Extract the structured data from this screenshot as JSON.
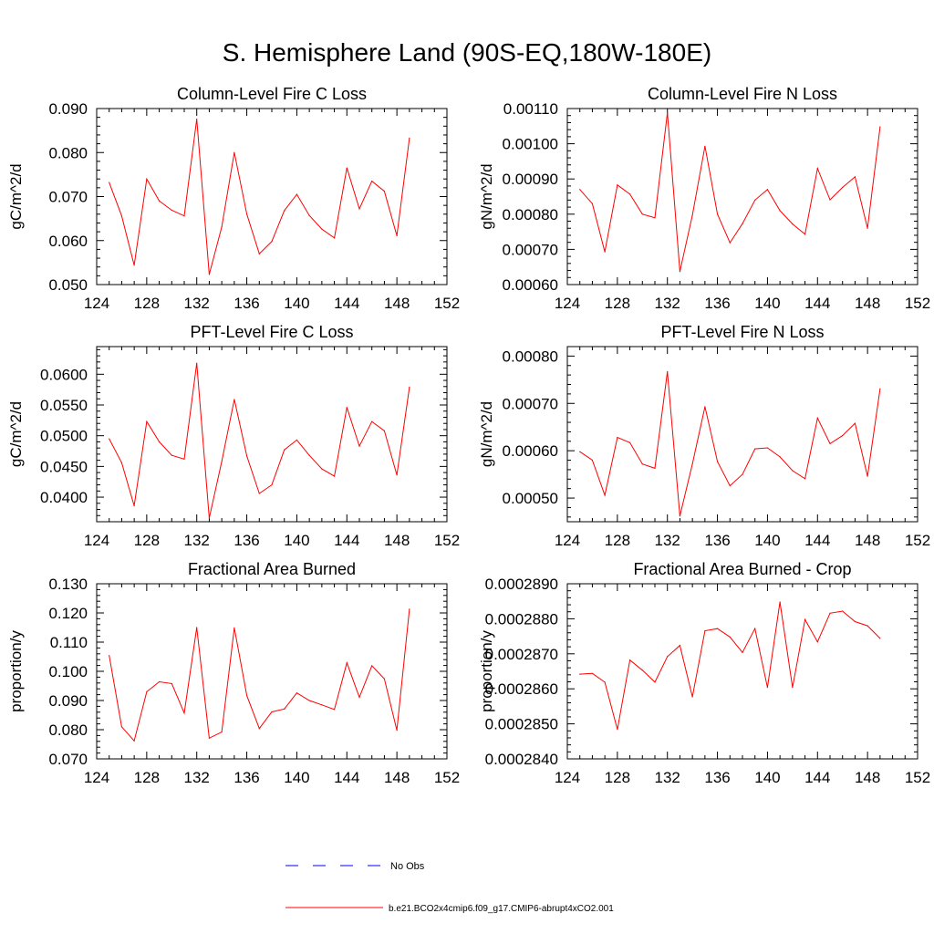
{
  "title": "S. Hemisphere Land (90S-EQ,180W-180E)",
  "colors": {
    "model": "#ff0000",
    "obs": "#0000ff",
    "axis": "#000000"
  },
  "legend": {
    "obs_label": "No Obs",
    "model_label": "b.e21.BCO2x4cmip6.f09_g17.CMIP6-abrupt4xCO2.001"
  },
  "chart_data": [
    {
      "type": "line",
      "title": "Column-Level Fire C Loss",
      "xlabel": "",
      "ylabel": "gC/m^2/d",
      "xlim": [
        124,
        152
      ],
      "ylim": [
        0.05,
        0.09
      ],
      "xticks": [
        "124",
        "128",
        "132",
        "136",
        "140",
        "144",
        "148",
        "152"
      ],
      "yticks": [
        "0.050",
        "0.060",
        "0.070",
        "0.080",
        "0.090"
      ],
      "x": [
        125,
        126,
        127,
        128,
        129,
        130,
        131,
        132,
        133,
        134,
        135,
        136,
        137,
        138,
        139,
        140,
        141,
        142,
        143,
        144,
        145,
        146,
        147,
        148,
        149
      ],
      "series": [
        {
          "name": "b.e21.BCO2x4cmip6.f09_g17.CMIP6-abrupt4xCO2.001",
          "values": [
            0.0732,
            0.0656,
            0.0544,
            0.074,
            0.069,
            0.0669,
            0.0656,
            0.0876,
            0.0523,
            0.0631,
            0.08,
            0.066,
            0.057,
            0.0598,
            0.0668,
            0.0705,
            0.0657,
            0.0626,
            0.0606,
            0.0765,
            0.0672,
            0.0735,
            0.0712,
            0.0611,
            0.0833
          ]
        }
      ]
    },
    {
      "type": "line",
      "title": "Column-Level Fire N Loss",
      "xlabel": "",
      "ylabel": "gN/m^2/d",
      "xlim": [
        124,
        152
      ],
      "ylim": [
        0.0006,
        0.0011
      ],
      "xticks": [
        "124",
        "128",
        "132",
        "136",
        "140",
        "144",
        "148",
        "152"
      ],
      "yticks": [
        "0.00060",
        "0.00070",
        "0.00080",
        "0.00090",
        "0.00100",
        "0.00110"
      ],
      "x": [
        125,
        126,
        127,
        128,
        129,
        130,
        131,
        132,
        133,
        134,
        135,
        136,
        137,
        138,
        139,
        140,
        141,
        142,
        143,
        144,
        145,
        146,
        147,
        148,
        149
      ],
      "series": [
        {
          "name": "b.e21.BCO2x4cmip6.f09_g17.CMIP6-abrupt4xCO2.001",
          "values": [
            0.00087,
            0.00083,
            0.000693,
            0.000883,
            0.000857,
            0.0008,
            0.00079,
            0.001088,
            0.000637,
            0.000797,
            0.000993,
            0.0008,
            0.000719,
            0.000773,
            0.00084,
            0.00087,
            0.00081,
            0.000772,
            0.000743,
            0.00093,
            0.000841,
            0.000876,
            0.000906,
            0.00076,
            0.001048
          ]
        }
      ]
    },
    {
      "type": "line",
      "title": "PFT-Level Fire C Loss",
      "xlabel": "",
      "ylabel": "gC/m^2/d",
      "xlim": [
        124,
        152
      ],
      "ylim": [
        0.036,
        0.0645
      ],
      "xticks": [
        "124",
        "128",
        "132",
        "136",
        "140",
        "144",
        "148",
        "152"
      ],
      "yticks": [
        "0.0400",
        "0.0450",
        "0.0500",
        "0.0550",
        "0.0600"
      ],
      "x": [
        125,
        126,
        127,
        128,
        129,
        130,
        131,
        132,
        133,
        134,
        135,
        136,
        137,
        138,
        139,
        140,
        141,
        142,
        143,
        144,
        145,
        146,
        147,
        148,
        149
      ],
      "series": [
        {
          "name": "b.e21.BCO2x4cmip6.f09_g17.CMIP6-abrupt4xCO2.001",
          "values": [
            0.0495,
            0.0456,
            0.0386,
            0.0523,
            0.049,
            0.0468,
            0.0462,
            0.0618,
            0.0366,
            0.0458,
            0.0559,
            0.0467,
            0.0406,
            0.042,
            0.0477,
            0.0493,
            0.0468,
            0.0446,
            0.0434,
            0.0546,
            0.0483,
            0.0523,
            0.0508,
            0.0436,
            0.0579
          ]
        }
      ]
    },
    {
      "type": "line",
      "title": "PFT-Level Fire N Loss",
      "xlabel": "",
      "ylabel": "gN/m^2/d",
      "xlim": [
        124,
        152
      ],
      "ylim": [
        0.00045,
        0.00082
      ],
      "xticks": [
        "124",
        "128",
        "132",
        "136",
        "140",
        "144",
        "148",
        "152"
      ],
      "yticks": [
        "0.00050",
        "0.00060",
        "0.00070",
        "0.00080"
      ],
      "x": [
        125,
        126,
        127,
        128,
        129,
        130,
        131,
        132,
        133,
        134,
        135,
        136,
        137,
        138,
        139,
        140,
        141,
        142,
        143,
        144,
        145,
        146,
        147,
        148,
        149
      ],
      "series": [
        {
          "name": "b.e21.BCO2x4cmip6.f09_g17.CMIP6-abrupt4xCO2.001",
          "values": [
            0.000598,
            0.00058,
            0.000506,
            0.000628,
            0.000617,
            0.000572,
            0.000563,
            0.000767,
            0.000462,
            0.000572,
            0.000693,
            0.000577,
            0.000526,
            0.00055,
            0.000604,
            0.000606,
            0.000587,
            0.000558,
            0.000541,
            0.000669,
            0.000615,
            0.000632,
            0.000658,
            0.000546,
            0.000731
          ]
        }
      ]
    },
    {
      "type": "line",
      "title": "Fractional Area Burned",
      "xlabel": "",
      "ylabel": "proportion/y",
      "xlim": [
        124,
        152
      ],
      "ylim": [
        0.07,
        0.13
      ],
      "xticks": [
        "124",
        "128",
        "132",
        "136",
        "140",
        "144",
        "148",
        "152"
      ],
      "yticks": [
        "0.070",
        "0.080",
        "0.090",
        "0.100",
        "0.110",
        "0.120",
        "0.130"
      ],
      "x": [
        125,
        126,
        127,
        128,
        129,
        130,
        131,
        132,
        133,
        134,
        135,
        136,
        137,
        138,
        139,
        140,
        141,
        142,
        143,
        144,
        145,
        146,
        147,
        148,
        149
      ],
      "series": [
        {
          "name": "b.e21.BCO2x4cmip6.f09_g17.CMIP6-abrupt4xCO2.001",
          "values": [
            0.1054,
            0.081,
            0.0762,
            0.093,
            0.0964,
            0.0958,
            0.0857,
            0.115,
            0.0771,
            0.0792,
            0.1149,
            0.0917,
            0.0804,
            0.0861,
            0.0871,
            0.0926,
            0.09,
            0.0885,
            0.0869,
            0.1029,
            0.0911,
            0.1019,
            0.0974,
            0.0798,
            0.1213
          ]
        }
      ]
    },
    {
      "type": "line",
      "title": "Fractional Area Burned - Crop",
      "xlabel": "",
      "ylabel": "proportion/y",
      "xlim": [
        124,
        152
      ],
      "ylim": [
        0.000284,
        0.000289
      ],
      "xticks": [
        "124",
        "128",
        "132",
        "136",
        "140",
        "144",
        "148",
        "152"
      ],
      "yticks": [
        "0.0002840",
        "0.0002850",
        "0.0002860",
        "0.0002870",
        "0.0002880",
        "0.0002890"
      ],
      "x": [
        125,
        126,
        127,
        128,
        129,
        130,
        131,
        132,
        133,
        134,
        135,
        136,
        137,
        138,
        139,
        140,
        141,
        142,
        143,
        144,
        145,
        146,
        147,
        148,
        149
      ],
      "series": [
        {
          "name": "b.e21.BCO2x4cmip6.f09_g17.CMIP6-abrupt4xCO2.001",
          "values": [
            0.00028642,
            0.00028644,
            0.00028619,
            0.00028484,
            0.00028682,
            0.00028653,
            0.00028619,
            0.00028692,
            0.00028724,
            0.00028577,
            0.00028766,
            0.00028772,
            0.00028748,
            0.00028704,
            0.00028772,
            0.00028604,
            0.00028848,
            0.00028604,
            0.00028798,
            0.00028734,
            0.00028816,
            0.00028822,
            0.00028792,
            0.0002878,
            0.00028744
          ]
        }
      ]
    }
  ]
}
